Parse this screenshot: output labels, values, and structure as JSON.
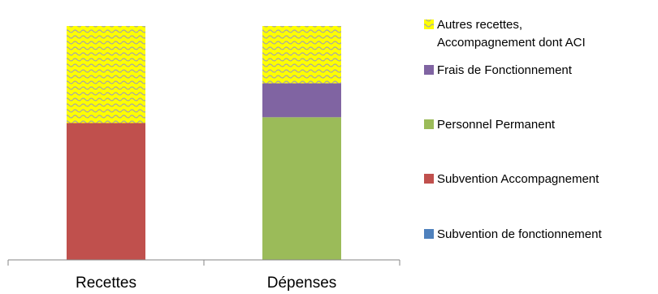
{
  "chart_data": {
    "type": "bar",
    "stacked": true,
    "categories": [
      "Recettes",
      "Dépenses"
    ],
    "ylim": [
      0,
      100
    ],
    "grid": false,
    "legend_position": "right",
    "series": [
      {
        "name": "Subvention de fonctionnement",
        "values": [
          0,
          0
        ],
        "color": "#4f81bd",
        "pattern": "none"
      },
      {
        "name": "Subvention Accompagnement",
        "values": [
          58.5,
          0
        ],
        "color": "#c0504d",
        "pattern": "none"
      },
      {
        "name": "Personnel Permanent",
        "values": [
          0,
          61
        ],
        "color": "#9bbb59",
        "pattern": "none"
      },
      {
        "name": "Frais de Fonctionnement",
        "values": [
          0,
          14.5
        ],
        "color": "#8064a2",
        "pattern": "none"
      },
      {
        "name": "Autres recettes, Accompagnement dont ACI",
        "legend_lines": [
          "Autres recettes,",
          "Accompagnement dont ACI"
        ],
        "values": [
          41.5,
          24.5
        ],
        "color": "#ffff00",
        "pattern": "wave",
        "pattern_color": "#a6a6a6"
      }
    ]
  }
}
